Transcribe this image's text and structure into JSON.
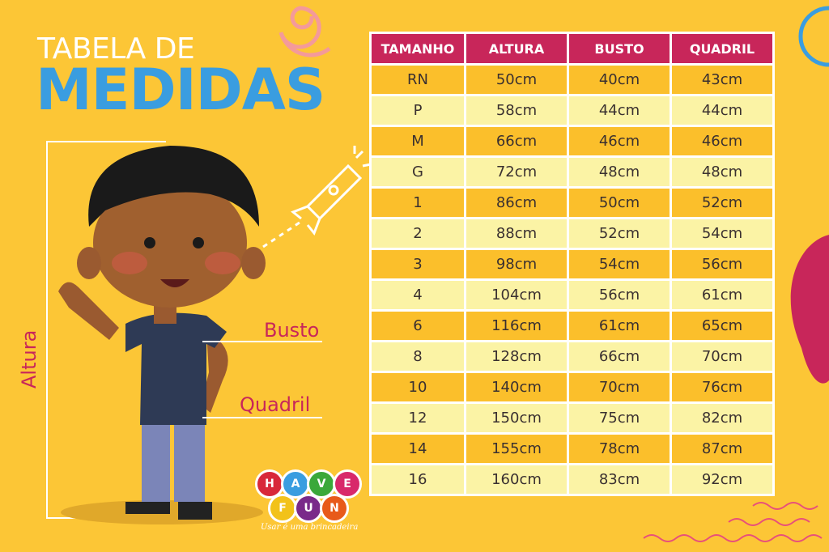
{
  "title": {
    "line1": "TABELA DE",
    "line2": "MEDIDAS"
  },
  "labels": {
    "busto": "Busto",
    "quadril": "Quadril",
    "altura": "Altura"
  },
  "table": {
    "headers": [
      "TAMANHO",
      "ALTURA",
      "BUSTO",
      "QUADRIL"
    ],
    "rows": [
      [
        "RN",
        "50cm",
        "40cm",
        "43cm"
      ],
      [
        "P",
        "58cm",
        "44cm",
        "44cm"
      ],
      [
        "M",
        "66cm",
        "46cm",
        "46cm"
      ],
      [
        "G",
        "72cm",
        "48cm",
        "48cm"
      ],
      [
        "1",
        "86cm",
        "50cm",
        "52cm"
      ],
      [
        "2",
        "88cm",
        "52cm",
        "54cm"
      ],
      [
        "3",
        "98cm",
        "54cm",
        "56cm"
      ],
      [
        "4",
        "104cm",
        "56cm",
        "61cm"
      ],
      [
        "6",
        "116cm",
        "61cm",
        "65cm"
      ],
      [
        "8",
        "128cm",
        "66cm",
        "70cm"
      ],
      [
        "10",
        "140cm",
        "70cm",
        "76cm"
      ],
      [
        "12",
        "150cm",
        "75cm",
        "82cm"
      ],
      [
        "14",
        "155cm",
        "78cm",
        "87cm"
      ],
      [
        "16",
        "160cm",
        "83cm",
        "92cm"
      ]
    ]
  },
  "logo": {
    "letters": [
      "H",
      "A",
      "V",
      "E",
      "F",
      "U",
      "N"
    ],
    "tagline": "Usar é uma brincadeira",
    "colors": [
      "#d8283a",
      "#3a9de0",
      "#3aa83a",
      "#d8286a",
      "#f2c21a",
      "#7a2a8a",
      "#e85a1a"
    ]
  },
  "colors": {
    "background": "#fcc636",
    "header": "#c8265a",
    "row_dark": "#fbbf2b",
    "row_light": "#fbf3a5",
    "title_blue": "#3a9de0"
  }
}
